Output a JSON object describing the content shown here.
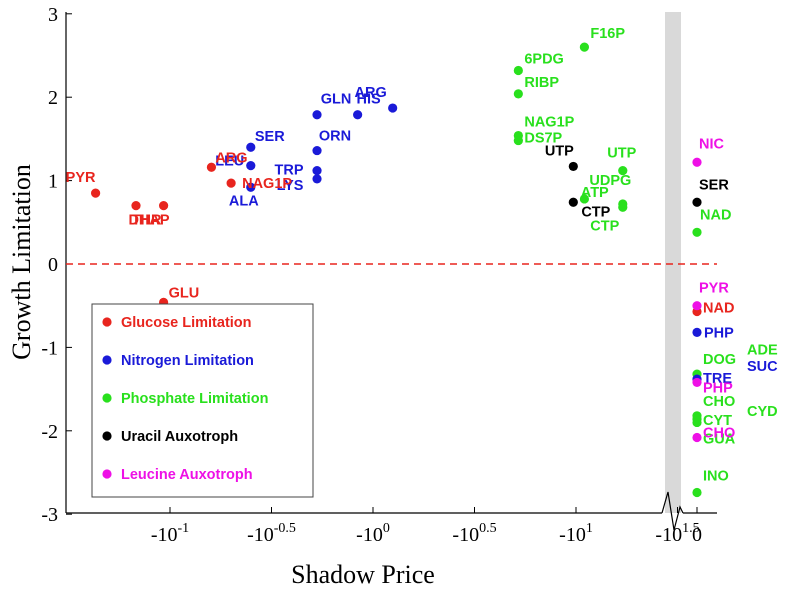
{
  "chart_data": {
    "type": "scatter",
    "xlabel": "Shadow Price",
    "ylabel": "Growth Limitation",
    "ylim": [
      -3,
      3
    ],
    "x_scale": "symlog (negative log10 of magnitude, with broken axis before 0)",
    "xlim": [
      -31.6,
      0
    ],
    "grid": false,
    "legend_position": "bottom-left",
    "y_ticks": [
      "3",
      "2",
      "1",
      "0",
      "-1",
      "-2",
      "-3"
    ],
    "x_ticks": [
      {
        "base": "-10",
        "exp": "1.5",
        "value": -31.62
      },
      {
        "base": "-10",
        "exp": "1",
        "value": -10
      },
      {
        "base": "-10",
        "exp": "0.5",
        "value": -3.162
      },
      {
        "base": "-10",
        "exp": "0",
        "value": -1
      },
      {
        "base": "-10",
        "exp": "-0.5",
        "value": -0.3162
      },
      {
        "base": "-10",
        "exp": "-1",
        "value": -0.1
      },
      {
        "base": "0",
        "exp": "",
        "value": 0
      }
    ],
    "reference_line": {
      "y": 0,
      "style": "dashed",
      "color": "#e8251e"
    },
    "colors": {
      "glucose": "#e8251e",
      "nitrogen": "#1a1ad8",
      "phosphate": "#29e01d",
      "uracil": "#000000",
      "leucine": "#ee10e6"
    },
    "legend": [
      {
        "key": "glucose",
        "label": "Glucose Limitation"
      },
      {
        "key": "nitrogen",
        "label": "Nitrogen Limitation"
      },
      {
        "key": "phosphate",
        "label": "Phosphate Limitation"
      },
      {
        "key": "uracil",
        "label": "Uracil Auxotroph"
      },
      {
        "key": "leucine",
        "label": "Leucine Auxotroph"
      }
    ],
    "series": [
      {
        "key": "phosphate",
        "points": [
          {
            "label": "F16P",
            "x": -11.0,
            "y": 2.6
          },
          {
            "label": "6PDG",
            "x": -5.2,
            "y": 2.32
          },
          {
            "label": "RIBP",
            "x": -5.2,
            "y": 2.04
          },
          {
            "label": "NAG1P",
            "x": -5.2,
            "y": 1.54
          },
          {
            "label": "DS7P",
            "x": -5.2,
            "y": 1.48
          },
          {
            "label": "UTP",
            "x": -17.0,
            "y": 1.12
          },
          {
            "label": "ATP",
            "x": -17.0,
            "y": 0.72
          },
          {
            "label": "CTP",
            "x": -17.0,
            "y": 0.68
          },
          {
            "label": "UDPG",
            "x": -11.0,
            "y": 0.78
          },
          {
            "label": "NAD",
            "x": 0,
            "y": 0.38
          },
          {
            "label": "DOG",
            "x": 0,
            "y": -1.32
          },
          {
            "label": "CHO",
            "x": 0,
            "y": -1.82
          },
          {
            "label": "CYT",
            "x": 0,
            "y": -1.86
          },
          {
            "label": "GUA",
            "x": 0,
            "y": -1.9
          },
          {
            "label": "INO",
            "x": 0,
            "y": -2.74
          }
        ]
      },
      {
        "key": "uracil",
        "points": [
          {
            "label": "UTP",
            "x": -9.7,
            "y": 1.17
          },
          {
            "label": "CTP",
            "x": -9.7,
            "y": 0.74
          },
          {
            "label": "SER",
            "x": 0,
            "y": 0.74
          }
        ]
      },
      {
        "key": "nitrogen",
        "points": [
          {
            "label": "ARG",
            "x": -1.25,
            "y": 1.87
          },
          {
            "label": "HIS",
            "x": -0.84,
            "y": 1.79
          },
          {
            "label": "GLN",
            "x": -0.53,
            "y": 1.79
          },
          {
            "label": "ORN",
            "x": -0.53,
            "y": 1.36
          },
          {
            "label": "TRP",
            "x": -0.53,
            "y": 1.12
          },
          {
            "label": "LYS",
            "x": -0.53,
            "y": 1.02
          },
          {
            "label": "SER",
            "x": -0.25,
            "y": 1.4
          },
          {
            "label": "LEU",
            "x": -0.25,
            "y": 1.18
          },
          {
            "label": "ALA",
            "x": -0.25,
            "y": 0.92
          },
          {
            "label": "PHP",
            "x": 0,
            "y": -0.82
          },
          {
            "label": "TRE",
            "x": 0,
            "y": -1.38
          }
        ]
      },
      {
        "key": "glucose",
        "points": [
          {
            "label": "ARG",
            "x": -0.16,
            "y": 1.16
          },
          {
            "label": "NAG1P",
            "x": -0.2,
            "y": 0.97
          },
          {
            "label": "THR",
            "x": -0.093,
            "y": 0.7
          },
          {
            "label": "DHAP",
            "x": -0.068,
            "y": 0.7
          },
          {
            "label": "PYR",
            "x": -0.043,
            "y": 0.85
          },
          {
            "label": "GLU",
            "x": -0.093,
            "y": -0.46
          },
          {
            "label": "NAD",
            "x": 0,
            "y": -0.57
          }
        ]
      },
      {
        "key": "leucine",
        "points": [
          {
            "label": "NIC",
            "x": 0,
            "y": 1.22
          },
          {
            "label": "PYR",
            "x": 0,
            "y": -0.5
          },
          {
            "label": "PHP",
            "x": 0,
            "y": -1.42
          },
          {
            "label": "CHO",
            "x": 0,
            "y": -2.08
          }
        ]
      }
    ],
    "extra_labels": [
      {
        "text": "ADE",
        "color_key": "phosphate",
        "y": -1.12
      },
      {
        "text": "SUC",
        "color_key": "nitrogen",
        "y": -1.32
      },
      {
        "text": "CYD",
        "color_key": "phosphate",
        "y": -1.86
      }
    ]
  }
}
